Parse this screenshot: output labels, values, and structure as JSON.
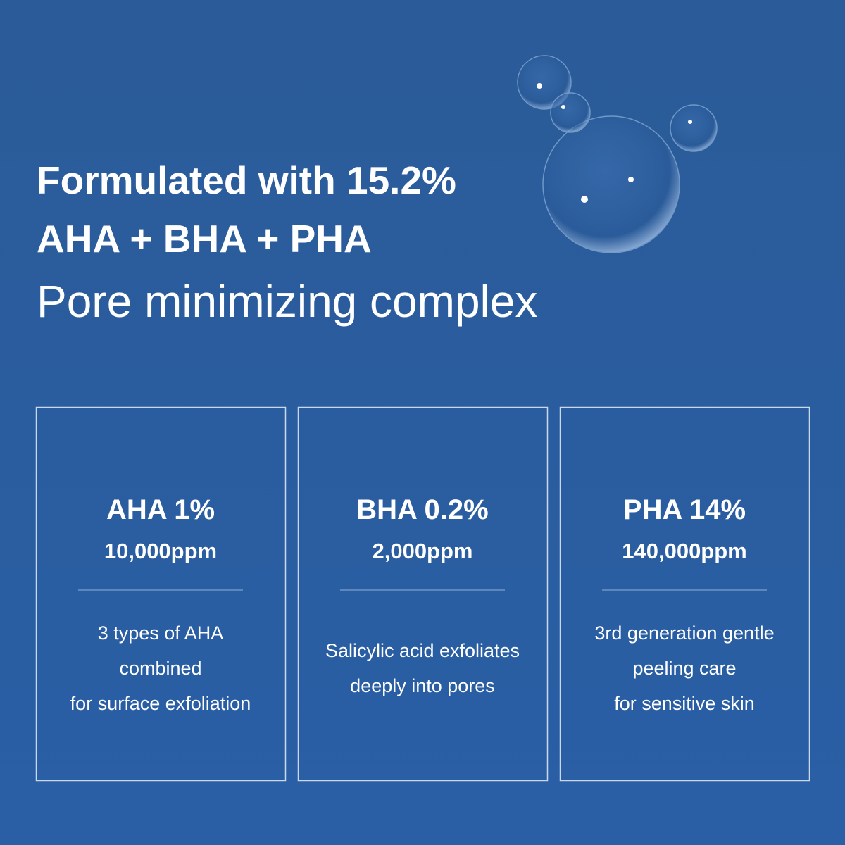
{
  "header": {
    "lines": [
      "Formulated with 15.2%",
      "AHA + BHA + PHA",
      "Pore minimizing complex"
    ]
  },
  "cards": [
    {
      "title": "AHA 1%",
      "ppm": "10,000ppm",
      "description": [
        "3 types of AHA",
        "combined",
        "for surface exfoliation"
      ]
    },
    {
      "title": "BHA 0.2%",
      "ppm": "2,000ppm",
      "description": [
        "Salicylic acid exfoliates",
        "deeply into pores"
      ]
    },
    {
      "title": "PHA 14%",
      "ppm": "140,000ppm",
      "description": [
        "3rd generation gentle",
        "peeling care",
        "for sensitive skin"
      ]
    }
  ]
}
